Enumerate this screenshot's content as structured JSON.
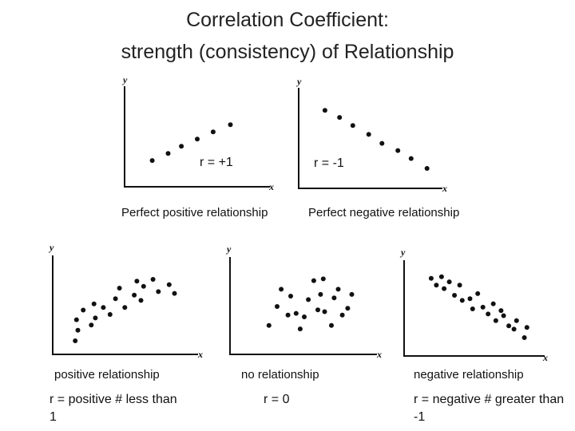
{
  "title": {
    "line1": "Correlation Coefficient:",
    "line2": "strength (consistency) of Relationship"
  },
  "axis_letters": {
    "y": "y",
    "x": "x"
  },
  "plots": [
    {
      "id": "perfect-positive",
      "caption": "Perfect positive relationship",
      "r_label": "r = +1",
      "points": [
        [
          0.16,
          0.24
        ],
        [
          0.28,
          0.32
        ],
        [
          0.38,
          0.4
        ],
        [
          0.5,
          0.48
        ],
        [
          0.62,
          0.56
        ],
        [
          0.75,
          0.64
        ]
      ]
    },
    {
      "id": "perfect-negative",
      "caption": "Perfect negative relationship",
      "r_label": "r = -1",
      "points": [
        [
          0.15,
          0.82
        ],
        [
          0.26,
          0.74
        ],
        [
          0.36,
          0.65
        ],
        [
          0.48,
          0.55
        ],
        [
          0.58,
          0.45
        ],
        [
          0.7,
          0.37
        ],
        [
          0.8,
          0.28
        ],
        [
          0.92,
          0.17
        ]
      ]
    },
    {
      "id": "positive",
      "caption": "positive relationship",
      "note": "r = positive # less than 1",
      "points": [
        [
          0.12,
          0.1
        ],
        [
          0.14,
          0.22
        ],
        [
          0.13,
          0.34
        ],
        [
          0.18,
          0.45
        ],
        [
          0.24,
          0.28
        ],
        [
          0.27,
          0.36
        ],
        [
          0.26,
          0.52
        ],
        [
          0.33,
          0.48
        ],
        [
          0.38,
          0.4
        ],
        [
          0.42,
          0.58
        ],
        [
          0.45,
          0.7
        ],
        [
          0.49,
          0.48
        ],
        [
          0.56,
          0.62
        ],
        [
          0.61,
          0.56
        ],
        [
          0.63,
          0.72
        ],
        [
          0.7,
          0.8
        ],
        [
          0.74,
          0.66
        ],
        [
          0.82,
          0.74
        ],
        [
          0.86,
          0.64
        ],
        [
          0.58,
          0.78
        ]
      ]
    },
    {
      "id": "none",
      "caption": "no relationship",
      "note": "r = 0",
      "points": [
        [
          0.24,
          0.28
        ],
        [
          0.3,
          0.5
        ],
        [
          0.33,
          0.7
        ],
        [
          0.4,
          0.62
        ],
        [
          0.44,
          0.42
        ],
        [
          0.47,
          0.24
        ],
        [
          0.53,
          0.58
        ],
        [
          0.57,
          0.8
        ],
        [
          0.62,
          0.64
        ],
        [
          0.65,
          0.44
        ],
        [
          0.7,
          0.28
        ],
        [
          0.72,
          0.6
        ],
        [
          0.75,
          0.7
        ],
        [
          0.82,
          0.48
        ],
        [
          0.85,
          0.64
        ],
        [
          0.64,
          0.82
        ],
        [
          0.6,
          0.46
        ],
        [
          0.5,
          0.38
        ],
        [
          0.38,
          0.4
        ],
        [
          0.78,
          0.4
        ]
      ]
    },
    {
      "id": "negative",
      "caption": "negative relationship",
      "note": "r = negative # greater than -1",
      "points": [
        [
          0.16,
          0.86
        ],
        [
          0.2,
          0.78
        ],
        [
          0.24,
          0.88
        ],
        [
          0.26,
          0.74
        ],
        [
          0.3,
          0.82
        ],
        [
          0.34,
          0.66
        ],
        [
          0.38,
          0.78
        ],
        [
          0.4,
          0.6
        ],
        [
          0.46,
          0.62
        ],
        [
          0.48,
          0.5
        ],
        [
          0.52,
          0.68
        ],
        [
          0.56,
          0.52
        ],
        [
          0.6,
          0.44
        ],
        [
          0.64,
          0.56
        ],
        [
          0.66,
          0.36
        ],
        [
          0.72,
          0.42
        ],
        [
          0.76,
          0.3
        ],
        [
          0.8,
          0.26
        ],
        [
          0.82,
          0.36
        ],
        [
          0.88,
          0.16
        ],
        [
          0.9,
          0.28
        ],
        [
          0.7,
          0.48
        ]
      ]
    }
  ]
}
